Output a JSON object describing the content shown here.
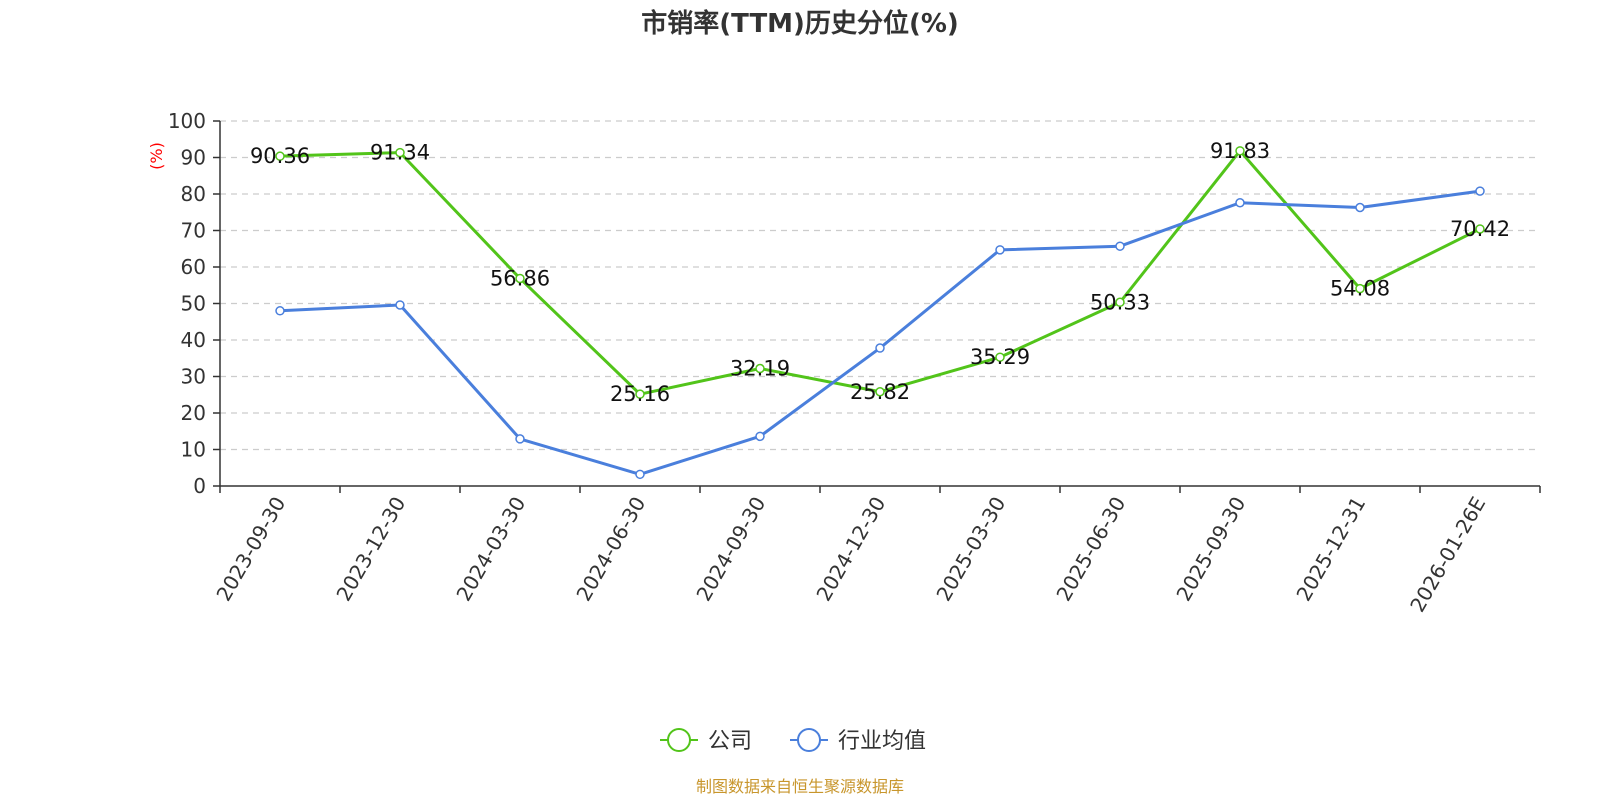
{
  "chart_data": {
    "type": "line",
    "title": "市销率(TTM)历史分位(%)",
    "ylabel": "(%)",
    "xlabel": "",
    "categories": [
      "2023-09-30",
      "2023-12-30",
      "2024-03-30",
      "2024-06-30",
      "2024-09-30",
      "2024-12-30",
      "2025-03-30",
      "2025-06-30",
      "2025-09-30",
      "2025-12-31",
      "2026-01-26E"
    ],
    "ylim": [
      0,
      100
    ],
    "yticks": [
      0,
      10,
      20,
      30,
      40,
      50,
      60,
      70,
      80,
      90,
      100
    ],
    "grid": true,
    "legend_position": "bottom-center",
    "series": [
      {
        "name": "公司",
        "color": "#52c41a",
        "show_labels": true,
        "values": [
          90.36,
          91.34,
          56.86,
          25.16,
          32.19,
          25.82,
          35.29,
          50.33,
          91.83,
          54.08,
          70.42
        ]
      },
      {
        "name": "行业均值",
        "color": "#4a7fdc",
        "show_labels": false,
        "values": [
          48.0,
          49.6,
          12.9,
          3.2,
          13.6,
          37.8,
          64.7,
          65.7,
          77.6,
          76.3,
          80.8
        ]
      }
    ]
  },
  "source": "制图数据来自恒生聚源数据库"
}
